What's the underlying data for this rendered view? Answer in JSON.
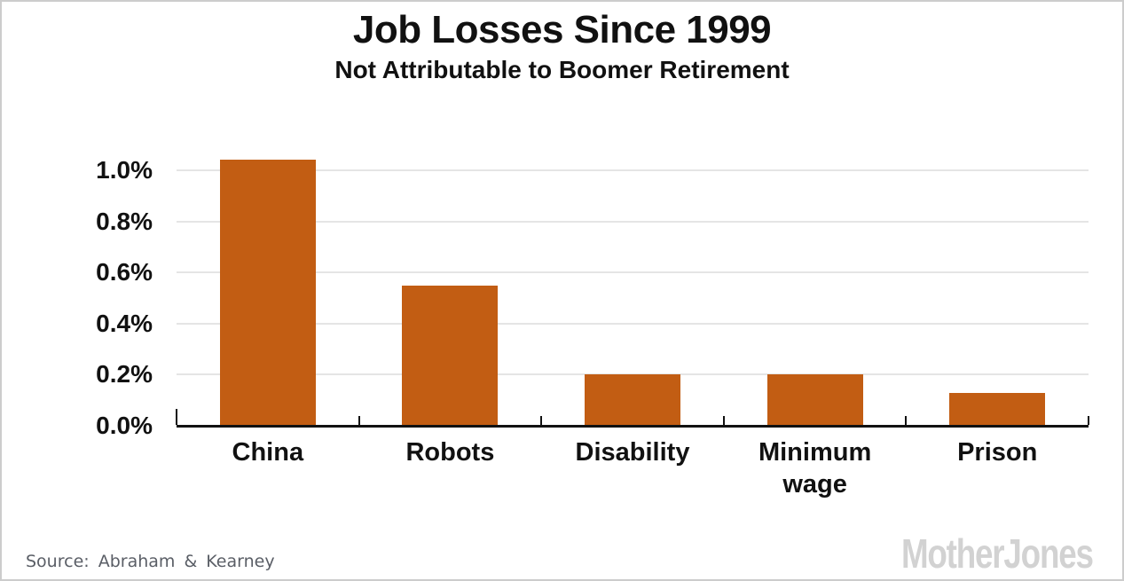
{
  "chart_data": {
    "type": "bar",
    "title": "Job Losses Since 1999",
    "subtitle": "Not Attributable to Boomer Retirement",
    "categories": [
      "China",
      "Robots",
      "Disability",
      "Minimum wage",
      "Prison"
    ],
    "values": [
      1.04,
      0.55,
      0.2,
      0.2,
      0.13
    ],
    "values_unit": "percent of jobs",
    "ylim": [
      0,
      1.1
    ],
    "yticks": [
      0.0,
      0.2,
      0.4,
      0.6,
      0.8,
      1.0
    ],
    "ytick_labels": [
      "0.0%",
      "0.2%",
      "0.4%",
      "0.6%",
      "0.8%",
      "1.0%"
    ],
    "grid": true,
    "legend": "none",
    "bar_color": "#c25d13",
    "gridline_color": "#e5e5e5",
    "axis_color": "#111111",
    "text_color": "#111111"
  },
  "footer": {
    "source": "Source: Abraham & Kearney",
    "logo": "MotherJones"
  },
  "frame": {
    "border_color": "#cccccc",
    "background_color": "#ffffff"
  }
}
